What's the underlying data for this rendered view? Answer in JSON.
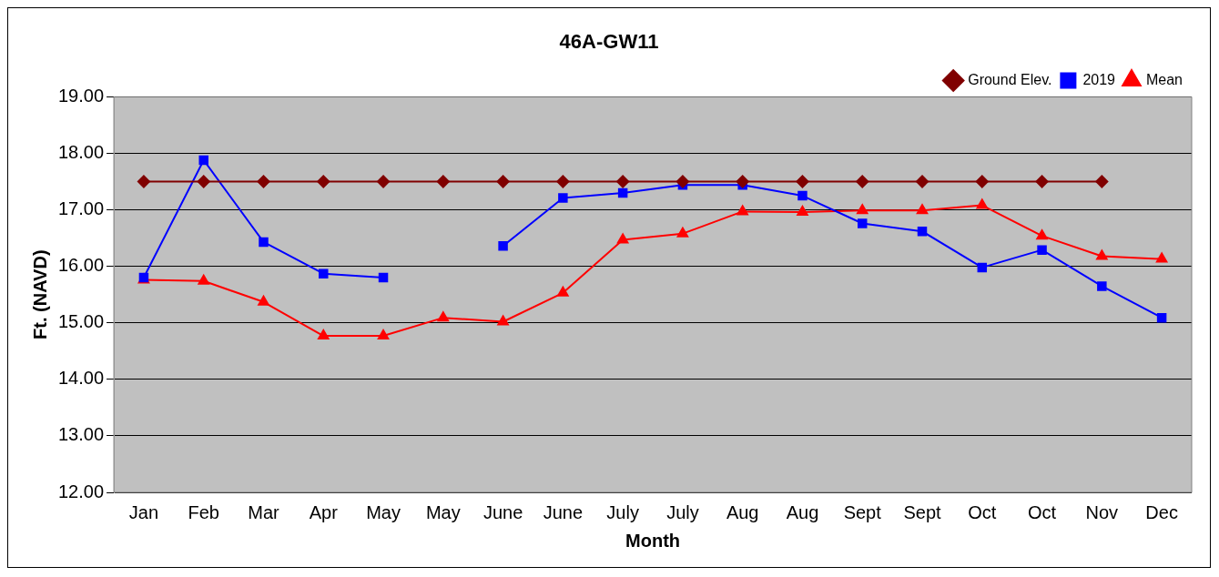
{
  "chart_data": {
    "type": "line",
    "title": "46A-GW11",
    "xlabel": "Month",
    "ylabel": "Ft. (NAVD)",
    "categories": [
      "Jan",
      "Feb",
      "Mar",
      "Apr",
      "May",
      "May",
      "June",
      "June",
      "July",
      "July",
      "Aug",
      "Aug",
      "Sept",
      "Sept",
      "Oct",
      "Oct",
      "Nov",
      "Dec"
    ],
    "series": [
      {
        "name": "Ground Elev.",
        "color": "#800000",
        "marker": "diamond",
        "values": [
          17.5,
          17.5,
          17.5,
          17.5,
          17.5,
          17.5,
          17.5,
          17.5,
          17.5,
          17.5,
          17.5,
          17.5,
          17.5,
          17.5,
          17.5,
          17.5,
          17.5,
          null
        ]
      },
      {
        "name": "2019",
        "color": "#0000ff",
        "marker": "square",
        "values": [
          15.8,
          17.88,
          16.43,
          15.87,
          15.8,
          null,
          16.36,
          17.21,
          17.3,
          17.44,
          17.44,
          17.25,
          16.76,
          16.62,
          15.98,
          16.29,
          15.65,
          15.09
        ]
      },
      {
        "name": "Mean",
        "color": "#ff0000",
        "marker": "triangle",
        "values": [
          15.76,
          15.74,
          15.37,
          14.77,
          14.77,
          15.09,
          15.02,
          15.53,
          16.47,
          16.58,
          16.97,
          16.96,
          16.99,
          16.99,
          17.08,
          16.54,
          16.18,
          16.13
        ]
      }
    ],
    "ylim": [
      12,
      19
    ],
    "yticks": [
      {
        "value": 12,
        "label": "12.00"
      },
      {
        "value": 13,
        "label": "13.00"
      },
      {
        "value": 14,
        "label": "14.00"
      },
      {
        "value": 15,
        "label": "15.00"
      },
      {
        "value": 16,
        "label": "16.00"
      },
      {
        "value": 17,
        "label": "17.00"
      },
      {
        "value": 18,
        "label": "18.00"
      },
      {
        "value": 19,
        "label": "19.00"
      }
    ],
    "grid": "y",
    "legend": "top right",
    "line_style": "solid"
  }
}
